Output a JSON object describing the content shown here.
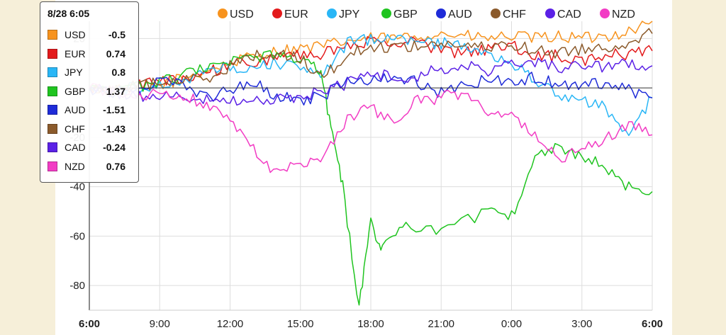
{
  "chart_data": {
    "type": "line",
    "y_ticks": [
      20,
      -20,
      -40,
      -60,
      -80
    ],
    "ylim": [
      -90,
      27
    ],
    "x_ticks": [
      {
        "label": "6:00",
        "bold": true
      },
      {
        "label": "9:00",
        "bold": false
      },
      {
        "label": "12:00",
        "bold": false
      },
      {
        "label": "15:00",
        "bold": false
      },
      {
        "label": "18:00",
        "bold": false
      },
      {
        "label": "21:00",
        "bold": false
      },
      {
        "label": "0:00",
        "bold": false
      },
      {
        "label": "3:00",
        "bold": false
      },
      {
        "label": "6:00",
        "bold": true
      }
    ],
    "hours_span": 24,
    "grid": true,
    "zero_line": true,
    "legend_position": "top",
    "series": [
      {
        "name": "USD",
        "color": "#f7931e",
        "points": [
          [
            0,
            0
          ],
          [
            1,
            -1
          ],
          [
            2,
            0
          ],
          [
            3,
            1
          ],
          [
            4,
            4
          ],
          [
            5,
            7
          ],
          [
            6,
            10
          ],
          [
            7,
            13
          ],
          [
            8,
            15
          ],
          [
            9,
            16
          ],
          [
            10,
            17
          ],
          [
            11,
            19
          ],
          [
            12,
            20
          ],
          [
            13,
            20
          ],
          [
            14,
            21
          ],
          [
            15,
            22
          ],
          [
            16,
            21
          ],
          [
            17,
            20
          ],
          [
            18,
            21
          ],
          [
            19,
            20
          ],
          [
            20,
            21
          ],
          [
            21,
            20
          ],
          [
            22,
            21
          ],
          [
            23,
            23
          ],
          [
            24,
            27
          ]
        ]
      },
      {
        "name": "EUR",
        "color": "#e31a1c",
        "points": [
          [
            0,
            0
          ],
          [
            1,
            -1
          ],
          [
            2,
            1
          ],
          [
            3,
            2
          ],
          [
            4,
            4
          ],
          [
            5,
            6
          ],
          [
            6,
            9
          ],
          [
            7,
            11
          ],
          [
            8,
            12
          ],
          [
            9,
            13
          ],
          [
            10,
            14
          ],
          [
            11,
            16
          ],
          [
            12,
            19
          ],
          [
            13,
            18
          ],
          [
            14,
            19
          ],
          [
            15,
            15
          ],
          [
            16,
            14
          ],
          [
            17,
            16
          ],
          [
            18,
            17
          ],
          [
            19,
            13
          ],
          [
            20,
            13
          ],
          [
            21,
            10
          ],
          [
            22,
            13
          ],
          [
            23,
            14
          ],
          [
            24,
            15
          ]
        ]
      },
      {
        "name": "JPY",
        "color": "#29b6f6",
        "points": [
          [
            0,
            0
          ],
          [
            1,
            -1
          ],
          [
            2,
            0
          ],
          [
            3,
            1
          ],
          [
            4,
            3
          ],
          [
            5,
            6
          ],
          [
            6,
            8
          ],
          [
            7,
            9
          ],
          [
            8,
            10
          ],
          [
            9,
            9
          ],
          [
            10,
            6
          ],
          [
            11,
            18
          ],
          [
            12,
            20
          ],
          [
            13,
            20
          ],
          [
            14,
            19
          ],
          [
            15,
            18
          ],
          [
            16,
            18
          ],
          [
            17,
            14
          ],
          [
            18,
            10
          ],
          [
            19,
            3
          ],
          [
            20,
            -3
          ],
          [
            21,
            -5
          ],
          [
            22,
            -8
          ],
          [
            23,
            -18
          ],
          [
            24,
            -4
          ]
        ]
      },
      {
        "name": "GBP",
        "color": "#1fc41f",
        "points": [
          [
            0,
            0
          ],
          [
            1,
            -1
          ],
          [
            2,
            0
          ],
          [
            3,
            2
          ],
          [
            4,
            5
          ],
          [
            5,
            8
          ],
          [
            6,
            10
          ],
          [
            7,
            12
          ],
          [
            8,
            13
          ],
          [
            9,
            11
          ],
          [
            9.8,
            8
          ],
          [
            10.3,
            -15
          ],
          [
            10.8,
            -40
          ],
          [
            11.5,
            -89
          ],
          [
            12,
            -55
          ],
          [
            12.5,
            -65
          ],
          [
            13.5,
            -55
          ],
          [
            15,
            -58
          ],
          [
            17,
            -50
          ],
          [
            18,
            -52
          ],
          [
            19,
            -28
          ],
          [
            20,
            -23
          ],
          [
            21,
            -28
          ],
          [
            22,
            -32
          ],
          [
            23,
            -40
          ],
          [
            24,
            -42
          ]
        ]
      },
      {
        "name": "AUD",
        "color": "#1e2bd8",
        "points": [
          [
            0,
            0
          ],
          [
            1,
            -2
          ],
          [
            2,
            -1
          ],
          [
            3,
            3
          ],
          [
            4,
            1
          ],
          [
            5,
            -4
          ],
          [
            6,
            -1
          ],
          [
            7,
            2
          ],
          [
            8,
            -3
          ],
          [
            9,
            -5
          ],
          [
            10,
            -3
          ],
          [
            11,
            4
          ],
          [
            12,
            3
          ],
          [
            13,
            5
          ],
          [
            14,
            2
          ],
          [
            15,
            -2
          ],
          [
            16,
            1
          ],
          [
            17,
            4
          ],
          [
            18,
            3
          ],
          [
            19,
            4
          ],
          [
            20,
            2
          ],
          [
            21,
            1
          ],
          [
            22,
            2
          ],
          [
            23,
            -1
          ],
          [
            24,
            -4
          ]
        ]
      },
      {
        "name": "CHF",
        "color": "#8b5a2b",
        "points": [
          [
            0,
            0
          ],
          [
            1,
            0
          ],
          [
            2,
            1
          ],
          [
            3,
            2
          ],
          [
            4,
            3
          ],
          [
            5,
            4
          ],
          [
            6,
            9
          ],
          [
            7,
            13
          ],
          [
            8,
            14
          ],
          [
            9,
            12
          ],
          [
            10,
            4
          ],
          [
            11,
            14
          ],
          [
            12,
            16
          ],
          [
            13,
            17
          ],
          [
            14,
            17
          ],
          [
            15,
            18
          ],
          [
            16,
            17
          ],
          [
            17,
            16
          ],
          [
            18,
            18
          ],
          [
            19,
            15
          ],
          [
            20,
            14
          ],
          [
            21,
            16
          ],
          [
            22,
            16
          ],
          [
            23,
            19
          ],
          [
            24,
            22
          ]
        ]
      },
      {
        "name": "CAD",
        "color": "#5b21e6",
        "points": [
          [
            0,
            0
          ],
          [
            1,
            -2
          ],
          [
            2,
            -3
          ],
          [
            3,
            -4
          ],
          [
            4,
            -3
          ],
          [
            5,
            -4
          ],
          [
            6,
            -5
          ],
          [
            7,
            -4
          ],
          [
            8,
            -5
          ],
          [
            9,
            -3
          ],
          [
            10,
            -2
          ],
          [
            11,
            2
          ],
          [
            12,
            6
          ],
          [
            13,
            4
          ],
          [
            14,
            5
          ],
          [
            15,
            8
          ],
          [
            16,
            9
          ],
          [
            17,
            7
          ],
          [
            18,
            10
          ],
          [
            19,
            11
          ],
          [
            20,
            8
          ],
          [
            21,
            9
          ],
          [
            22,
            8
          ],
          [
            23,
            10
          ],
          [
            24,
            9
          ]
        ]
      },
      {
        "name": "NZD",
        "color": "#f23cc4",
        "points": [
          [
            0,
            0
          ],
          [
            1,
            -1
          ],
          [
            2,
            -3
          ],
          [
            3,
            -2
          ],
          [
            4,
            -4
          ],
          [
            5,
            -6
          ],
          [
            6,
            -12
          ],
          [
            7,
            -25
          ],
          [
            8,
            -35
          ],
          [
            9,
            -30
          ],
          [
            10,
            -28
          ],
          [
            11,
            -12
          ],
          [
            12,
            -8
          ],
          [
            13,
            -14
          ],
          [
            14,
            -5
          ],
          [
            15,
            -4
          ],
          [
            16,
            -2
          ],
          [
            17,
            -10
          ],
          [
            18,
            -12
          ],
          [
            19,
            -20
          ],
          [
            20,
            -28
          ],
          [
            21,
            -26
          ],
          [
            22,
            -20
          ],
          [
            23,
            -15
          ],
          [
            24,
            -19
          ]
        ]
      }
    ]
  },
  "tooltip": {
    "title": "8/28 6:05",
    "rows": [
      {
        "name": "USD",
        "value": "-0.5",
        "color": "#f7931e"
      },
      {
        "name": "EUR",
        "value": "0.74",
        "color": "#e31a1c"
      },
      {
        "name": "JPY",
        "value": "0.8",
        "color": "#29b6f6"
      },
      {
        "name": "GBP",
        "value": "1.37",
        "color": "#1fc41f"
      },
      {
        "name": "AUD",
        "value": "-1.51",
        "color": "#1e2bd8"
      },
      {
        "name": "CHF",
        "value": "-1.43",
        "color": "#8b5a2b"
      },
      {
        "name": "CAD",
        "value": "-0.24",
        "color": "#5b21e6"
      },
      {
        "name": "NZD",
        "value": "0.76",
        "color": "#f23cc4"
      }
    ]
  }
}
